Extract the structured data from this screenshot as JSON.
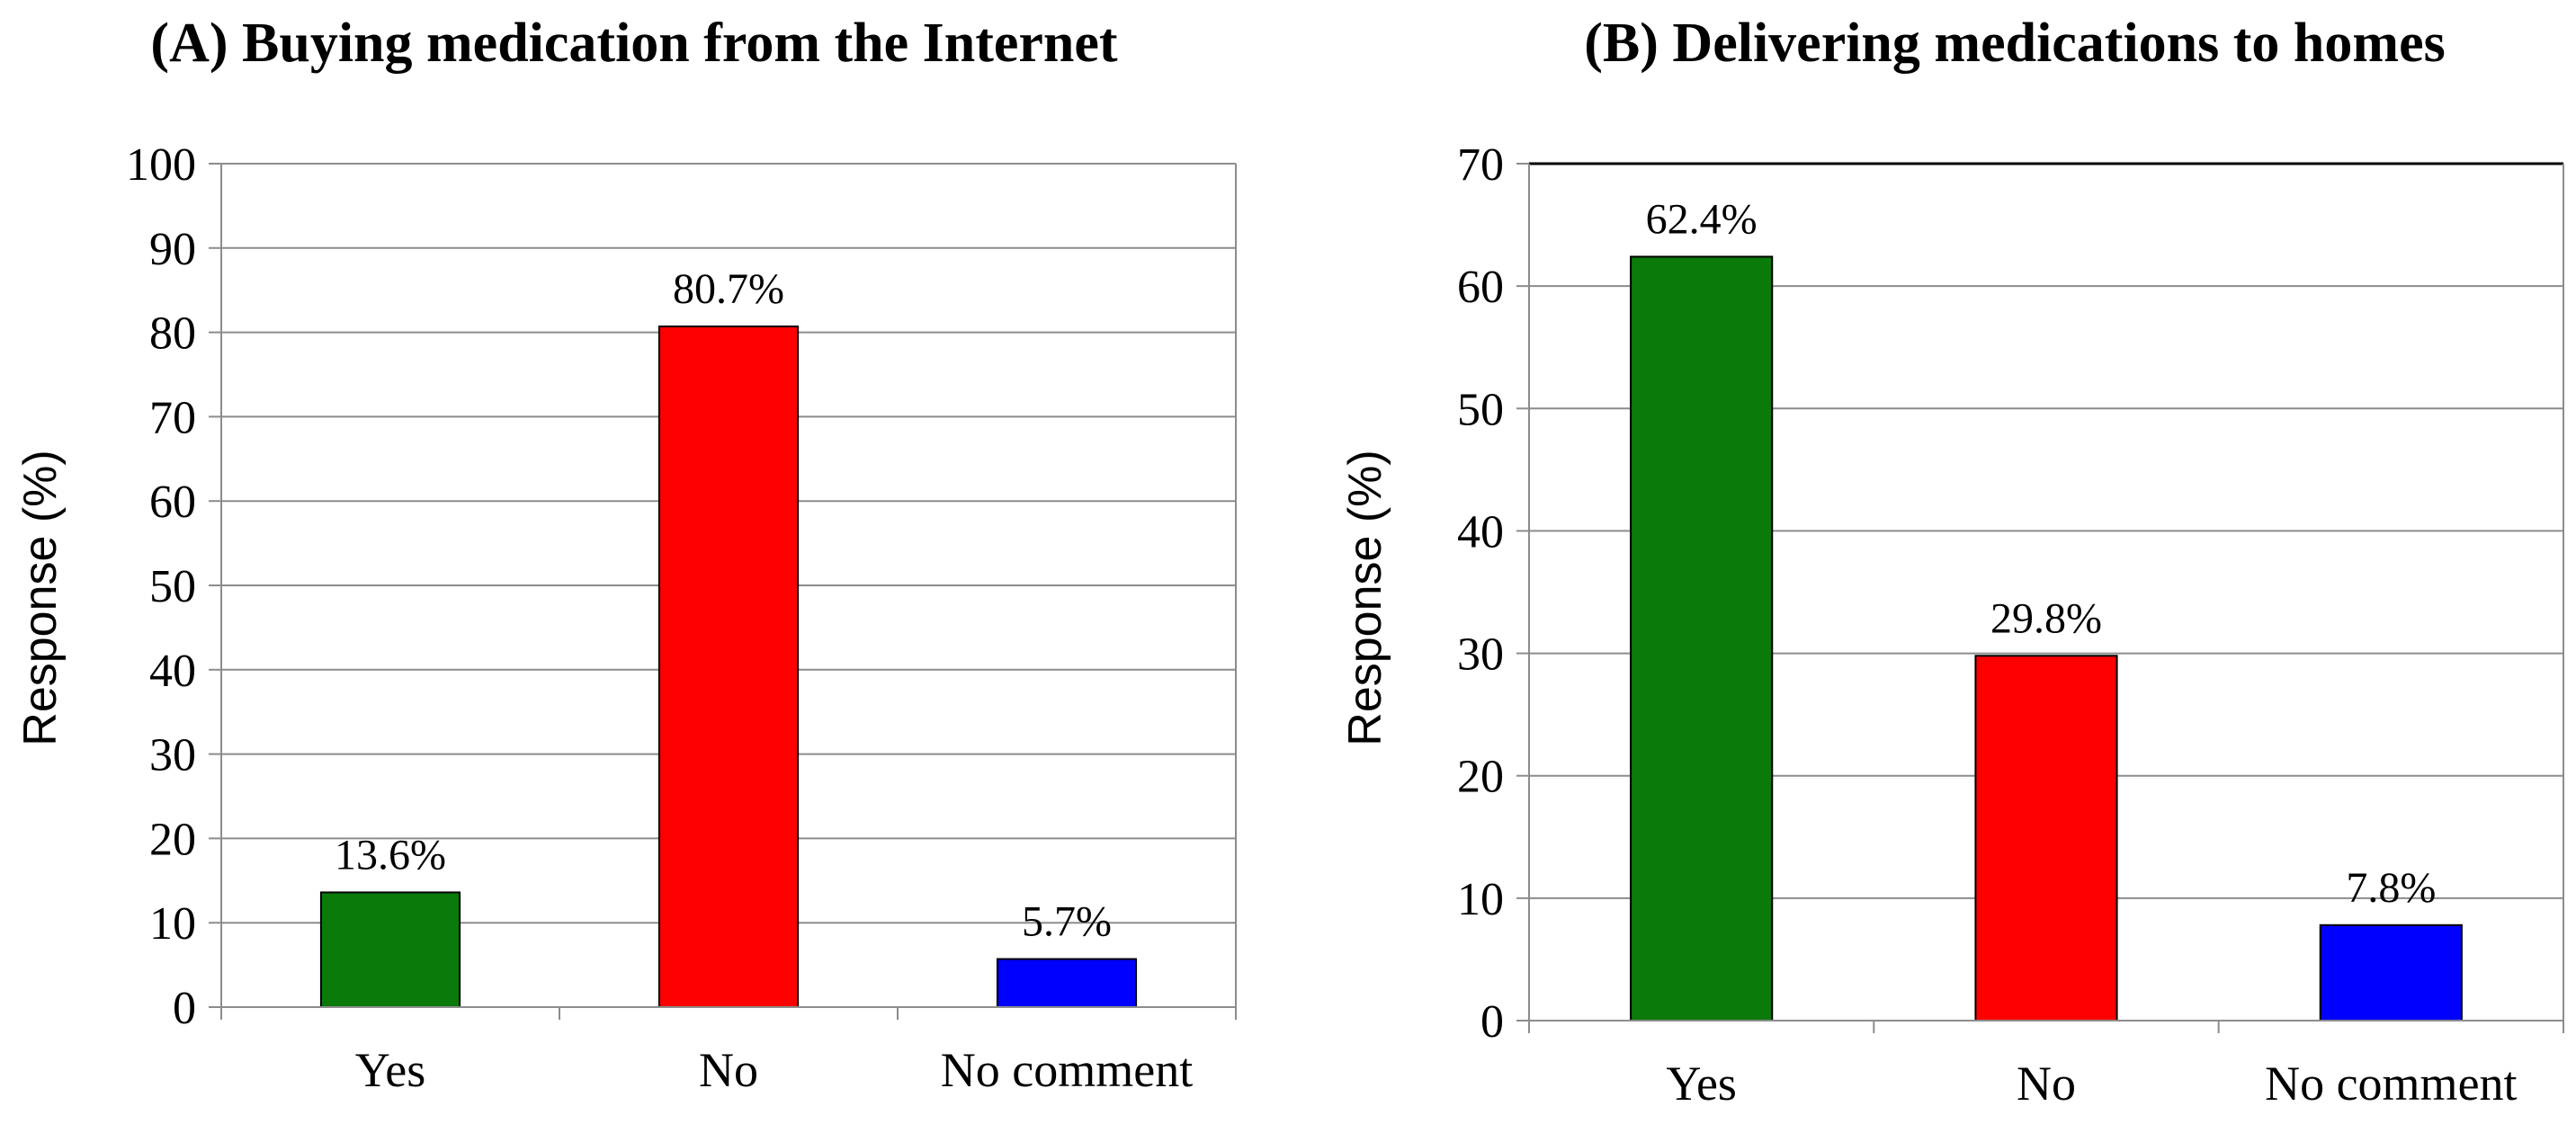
{
  "chart_data": [
    {
      "type": "bar",
      "title": "(A) Buying medication from the Internet",
      "xlabel": "",
      "ylabel": "Response (%)",
      "categories": [
        "Yes",
        "No",
        "No comment"
      ],
      "values": [
        13.6,
        80.7,
        5.7
      ],
      "data_labels": [
        "13.6%",
        "80.7%",
        "5.7%"
      ],
      "colors": [
        "#0a7a0a",
        "#ff0000",
        "#0000ff"
      ],
      "ylim": [
        0,
        100
      ],
      "yticks": [
        0,
        10,
        20,
        30,
        40,
        50,
        60,
        70,
        80,
        90,
        100
      ],
      "grid": true,
      "legend": "none"
    },
    {
      "type": "bar",
      "title": "(B) Delivering medications to homes",
      "xlabel": "",
      "ylabel": "Response (%)",
      "categories": [
        "Yes",
        "No",
        "No comment"
      ],
      "values": [
        62.4,
        29.8,
        7.8
      ],
      "data_labels": [
        "62.4%",
        "29.8%",
        "7.8%"
      ],
      "colors": [
        "#0a7a0a",
        "#ff0000",
        "#0000ff"
      ],
      "ylim": [
        0,
        70
      ],
      "yticks": [
        0,
        10,
        20,
        30,
        40,
        50,
        60,
        70
      ],
      "grid": true,
      "legend": "none"
    }
  ]
}
